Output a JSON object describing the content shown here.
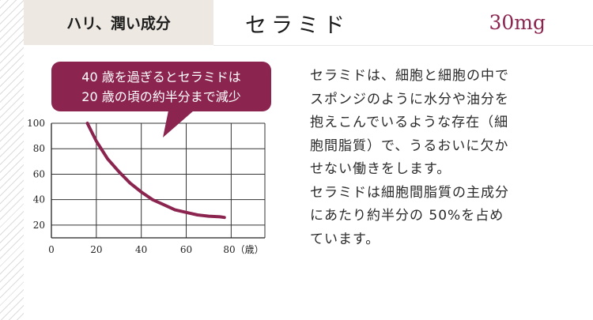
{
  "header": {
    "category": "ハリ、潤い成分",
    "ingredient": "セラミド",
    "amount": "30mg"
  },
  "colors": {
    "accent": "#8b2550",
    "header_bg": "#ede8e1"
  },
  "chart_data": {
    "type": "line",
    "title": "",
    "xlabel": "",
    "ylabel": "",
    "x_tick_labels": [
      "0",
      "20",
      "40",
      "60",
      "80（歳）"
    ],
    "y_tick_labels": [
      "20",
      "40",
      "60",
      "80",
      "100"
    ],
    "xlim": [
      0,
      95
    ],
    "ylim": [
      10,
      100
    ],
    "grid": true,
    "series": [
      {
        "x": [
          16,
          20,
          25,
          30,
          35,
          40,
          45,
          50,
          55,
          60,
          65,
          70,
          75,
          77
        ],
        "y": [
          100,
          86,
          72,
          62,
          53,
          46,
          40,
          36,
          32,
          30,
          28,
          27,
          26.5,
          26
        ]
      }
    ],
    "annotation": {
      "line1": "40 歳を過ぎるとセラミドは",
      "line2": "20 歳の頃の約半分まで減少"
    }
  },
  "description": {
    "paragraph1": [
      "セラミドは、細胞と細胞の中で",
      "スポンジのように水分や油分を",
      "抱えこんでいるような存在（細",
      "胞間脂質）で、うるおいに欠か",
      "せない働きをします。"
    ],
    "paragraph2": [
      "セラミドは細胞間脂質の主成分",
      "にあたり約半分の 50%を占め",
      "ています。"
    ]
  }
}
